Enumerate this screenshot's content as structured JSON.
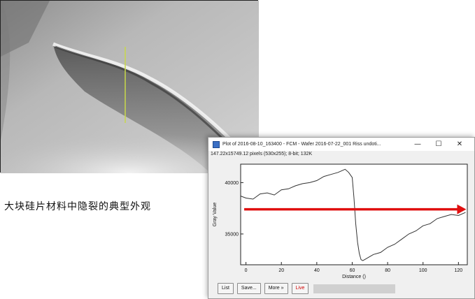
{
  "caption": "大块硅片材料中隐裂的典型外观",
  "plot_window": {
    "title": "Plot of 2016-08-10_163400 - FCM - Wafer 2016-07-22_001 Riss undoti...",
    "info": "147.22x15749.12 pixels (530x255); 8-bit; 132K",
    "minimize_glyph": "—",
    "maximize_glyph": "☐",
    "close_glyph": "✕",
    "buttons": {
      "list": "List",
      "save": "Save...",
      "more": "More »",
      "live": "Live"
    }
  },
  "colors": {
    "arrow": "#e01010",
    "profile": "#333333",
    "live_text": "#d00000",
    "marker_line": "#c8d84a"
  },
  "chart_data": {
    "type": "line",
    "xlabel": "Distance ()",
    "ylabel": "Gray Value",
    "xlim": [
      -3,
      125
    ],
    "ylim": [
      32000,
      41800
    ],
    "xticks": [
      0,
      20,
      40,
      60,
      80,
      100,
      120
    ],
    "yticks": [
      35000,
      40000
    ],
    "grid": false,
    "series": [
      {
        "x": [
          -3,
          0,
          4,
          8,
          12,
          16,
          20,
          24,
          28,
          32,
          36,
          40,
          44,
          48,
          52,
          56,
          58,
          60,
          61,
          62,
          63,
          64,
          65,
          66,
          68,
          70,
          72,
          76,
          80,
          84,
          88,
          92,
          96,
          100,
          104,
          108,
          112,
          116,
          120,
          124
        ],
        "y": [
          38700,
          38500,
          38400,
          38900,
          39000,
          38800,
          39300,
          39400,
          39700,
          39900,
          40000,
          40200,
          40600,
          40800,
          41000,
          41300,
          41000,
          40500,
          38500,
          36000,
          34200,
          33100,
          32500,
          32400,
          32600,
          32800,
          33000,
          33200,
          33700,
          34000,
          34500,
          35000,
          35300,
          35800,
          36000,
          36500,
          36700,
          36900,
          36800,
          37100
        ]
      }
    ],
    "annotation": {
      "type": "arrow",
      "y": 37400,
      "x_start": -1,
      "x_end": 124
    }
  }
}
